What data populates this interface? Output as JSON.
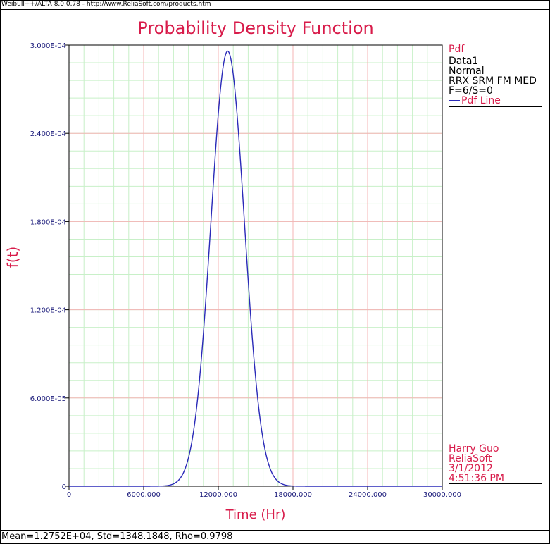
{
  "window": {
    "header_text": "Weibull++/ALTA 8.0.0.78 - http://www.ReliaSoft.com/products.htm"
  },
  "chart_data": {
    "type": "line",
    "title": "Probability Density Function",
    "xlabel": "Time (Hr)",
    "ylabel": "f(t)",
    "xlim": [
      0,
      30000
    ],
    "ylim": [
      0,
      0.0003
    ],
    "x_ticks": [
      "0",
      "6000.000",
      "12000.000",
      "18000.000",
      "24000.000",
      "30000.000"
    ],
    "x_tick_values": [
      0,
      6000,
      12000,
      18000,
      24000,
      30000
    ],
    "y_ticks": [
      "0",
      "6.000E-05",
      "1.200E-04",
      "1.800E-04",
      "2.400E-04",
      "3.000E-04"
    ],
    "y_tick_values": [
      0,
      6e-05,
      0.00012,
      0.00018,
      0.00024,
      0.0003
    ],
    "grid": true,
    "distribution": {
      "kind": "normal",
      "mean": 12752,
      "std": 1348.1848
    },
    "series": [
      {
        "name": "Pdf Line",
        "color": "#2a2ab8"
      }
    ],
    "colors": {
      "major_grid": "#f4b5b5",
      "minor_grid": "#c8f0c8",
      "axis": "#000000",
      "title": "#d81b4a",
      "ticks": "#1a1a7a"
    }
  },
  "legend": {
    "title": "Pdf",
    "lines": [
      "Data1",
      "Normal",
      "RRX SRM FM MED",
      "F=6/S=0"
    ],
    "entry": "Pdf Line"
  },
  "info": {
    "user": "Harry Guo",
    "company": "ReliaSoft",
    "date": "3/1/2012",
    "time": "4:51:36 PM"
  },
  "footer": {
    "stats": "Mean=1.2752E+04, Std=1348.1848, Rho=0.9798"
  }
}
